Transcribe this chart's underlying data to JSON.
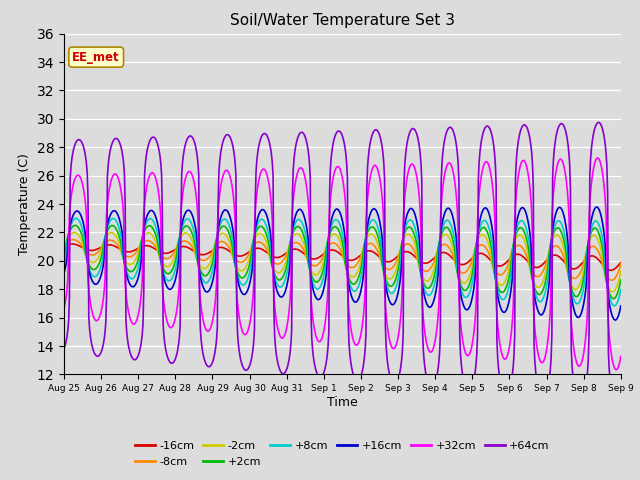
{
  "title": "Soil/Water Temperature Set 3",
  "xlabel": "Time",
  "ylabel": "Temperature (C)",
  "ylim": [
    12,
    36
  ],
  "yticks": [
    12,
    14,
    16,
    18,
    20,
    22,
    24,
    26,
    28,
    30,
    32,
    34,
    36
  ],
  "plot_bg": "#dcdcdc",
  "fig_bg": "#dcdcdc",
  "annotation": "EE_met",
  "annotation_bg": "#ffffcc",
  "annotation_border": "#cc0000",
  "series_colors": {
    "-16cm": "#dd0000",
    "-8cm": "#ff8800",
    "-2cm": "#cccc00",
    "+2cm": "#00bb00",
    "+8cm": "#00cccc",
    "+16cm": "#0000cc",
    "+32cm": "#ff00ff",
    "+64cm": "#8800cc"
  },
  "xtick_labels": [
    "Aug 25",
    "Aug 26",
    "Aug 27",
    "Aug 28",
    "Aug 29",
    "Aug 30",
    "Aug 31",
    "Sep 1",
    "Sep 2",
    "Sep 3",
    "Sep 4",
    "Sep 5",
    "Sep 6",
    "Sep 7",
    "Sep 8",
    "Sep 9"
  ],
  "legend_order": [
    "-16cm",
    "-8cm",
    "-2cm",
    "+2cm",
    "+8cm",
    "+16cm",
    "+32cm",
    "+64cm"
  ]
}
